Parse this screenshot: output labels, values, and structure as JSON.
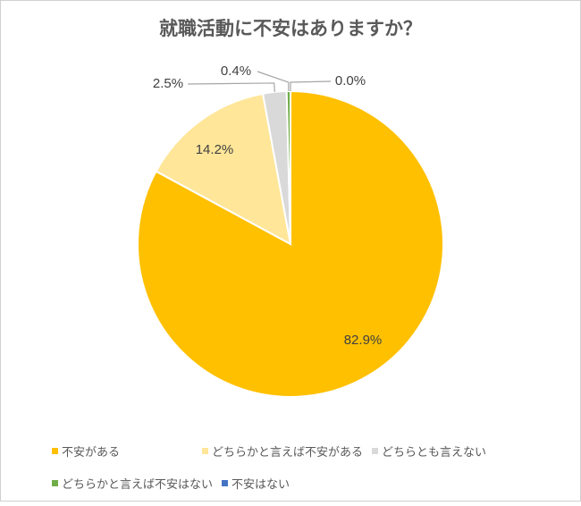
{
  "chart_data": {
    "type": "pie",
    "title": "就職活動に不安はありますか？",
    "categories": [
      "不安がある",
      "どちらかと言えば不安がある",
      "どちらとも言えない",
      "どちらかと言えば不安はない",
      "不安はない"
    ],
    "values": [
      82.9,
      14.2,
      2.5,
      0.4,
      0.0
    ],
    "labels": [
      "82.9%",
      "14.2%",
      "2.5%",
      "0.4%",
      "0.0%"
    ],
    "colors": [
      "#FFC000",
      "#FFE699",
      "#D9D9D9",
      "#70AD47",
      "#4472C4"
    ],
    "legend_position": "bottom",
    "start_angle": "12 o'clock",
    "direction": "clockwise"
  }
}
